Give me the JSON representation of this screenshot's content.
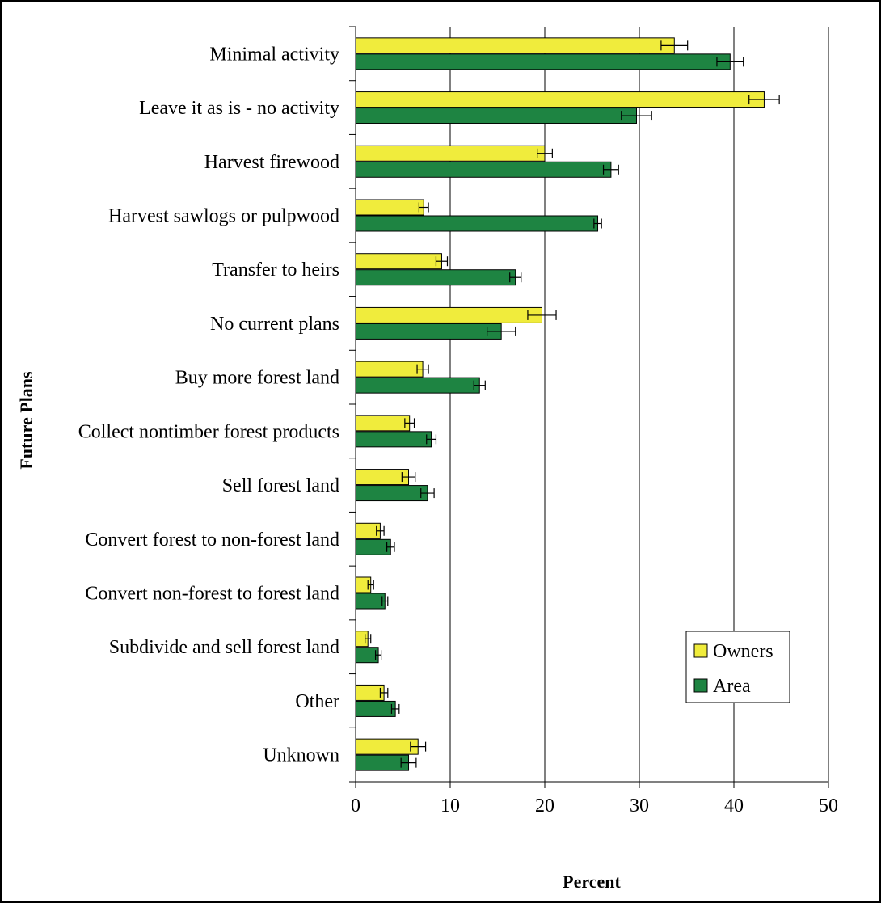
{
  "chart_data": {
    "type": "bar",
    "orientation": "horizontal",
    "xlabel": "Percent",
    "ylabel": "Future Plans",
    "xlim": [
      0,
      50
    ],
    "xticks": [
      "0",
      "10",
      "20",
      "30",
      "40",
      "50"
    ],
    "grid": "vertical",
    "legend_position": "bottom-right",
    "categories": [
      "Minimal activity",
      "Leave it as is - no activity",
      "Harvest firewood",
      "Harvest sawlogs or pulpwood",
      "Transfer to heirs",
      "No current plans",
      "Buy more forest land",
      "Collect nontimber forest products",
      "Sell forest land",
      "Convert forest to non-forest land",
      "Convert non-forest to forest land",
      "Subdivide and sell forest land",
      "Other",
      "Unknown"
    ],
    "series": [
      {
        "name": "Owners",
        "color": "#f0ec3c",
        "values": [
          33.7,
          43.2,
          20.0,
          7.2,
          9.1,
          19.7,
          7.1,
          5.7,
          5.6,
          2.6,
          1.6,
          1.3,
          3.0,
          6.6
        ],
        "errors": [
          1.4,
          1.6,
          0.8,
          0.5,
          0.6,
          1.5,
          0.6,
          0.5,
          0.7,
          0.4,
          0.3,
          0.3,
          0.4,
          0.8
        ]
      },
      {
        "name": "Area",
        "color": "#1e8442",
        "values": [
          39.6,
          29.7,
          27.0,
          25.6,
          16.9,
          15.4,
          13.1,
          8.0,
          7.6,
          3.7,
          3.1,
          2.4,
          4.2,
          5.6
        ],
        "errors": [
          1.4,
          1.6,
          0.8,
          0.4,
          0.6,
          1.5,
          0.6,
          0.5,
          0.7,
          0.4,
          0.3,
          0.3,
          0.4,
          0.8
        ]
      }
    ]
  }
}
